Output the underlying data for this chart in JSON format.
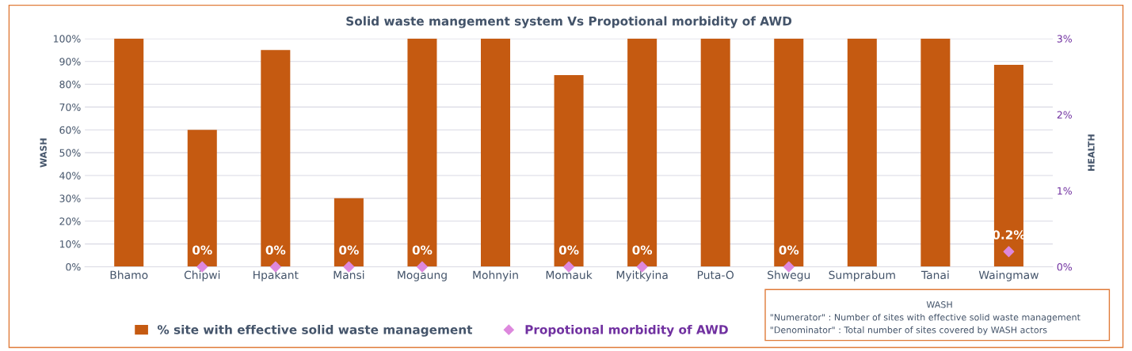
{
  "chart_data": {
    "type": "bar",
    "title": "Solid waste mangement system Vs Propotional morbidity of AWD",
    "ylabel": "WASH",
    "y2label": "HEALTH",
    "categories": [
      "Bhamo",
      "Chipwi",
      "Hpakant",
      "Mansi",
      "Mogaung",
      "Mohnyin",
      "Momauk",
      "Myitkyina",
      "Puta-O",
      "Shwegu",
      "Sumprabum",
      "Tanai",
      "Waingmaw"
    ],
    "series": [
      {
        "name": "% site with effective solid waste management",
        "color": "#c55a11",
        "values": [
          100,
          60,
          95,
          30,
          100,
          100,
          84,
          100,
          100,
          100,
          100,
          100,
          88.5
        ]
      },
      {
        "name": "Propotional morbidity of AWD",
        "type": "scatter",
        "axis": "y2",
        "color": "#dd88dd",
        "marker": "diamond",
        "values": [
          null,
          0,
          0,
          0,
          0,
          null,
          0,
          0,
          null,
          0,
          null,
          null,
          0.2
        ],
        "value_labels": [
          null,
          "0%",
          "0%",
          "0%",
          "0%",
          null,
          "0%",
          "0%",
          null,
          "0%",
          null,
          null,
          "0.2%"
        ]
      }
    ],
    "ylim": [
      0,
      100
    ],
    "yticks": [
      {
        "value": 0,
        "label": "0%"
      },
      {
        "value": 10,
        "label": "10%"
      },
      {
        "value": 20,
        "label": "20%"
      },
      {
        "value": 30,
        "label": "30%"
      },
      {
        "value": 40,
        "label": "40%"
      },
      {
        "value": 50,
        "label": "50%"
      },
      {
        "value": 60,
        "label": "60%"
      },
      {
        "value": 70,
        "label": "70%"
      },
      {
        "value": 80,
        "label": "80%"
      },
      {
        "value": 90,
        "label": "90%"
      },
      {
        "value": 100,
        "label": "100%"
      }
    ],
    "y2lim": [
      0,
      3
    ],
    "y2ticks": [
      {
        "value": 0,
        "label": "0%"
      },
      {
        "value": 1,
        "label": "1%"
      },
      {
        "value": 2,
        "label": "2%"
      },
      {
        "value": 3,
        "label": "3%"
      }
    ],
    "grid": "y",
    "legend": "bottom",
    "annotations": [
      "WASH",
      "\"Numerator\" : Number of sites with effective solid waste management",
      "\"Denominator\" : Total number of sites covered by WASH actors"
    ]
  }
}
